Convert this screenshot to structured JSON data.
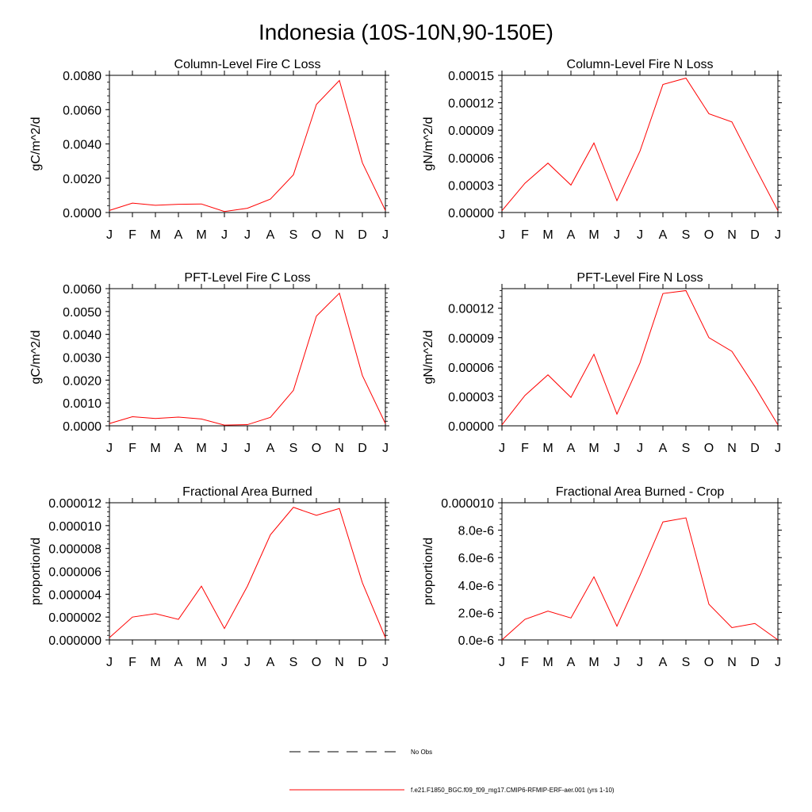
{
  "figure": {
    "title": "Indonesia (10S-10N,90-150E)"
  },
  "legend": {
    "obs_label": "No Obs",
    "model_label": "f.e21.F1850_BGC.f09_f09_mg17.CMIP6-RFMIP-ERF-aer.001 (yrs 1-10)",
    "model_color": "#ff0000",
    "obs_color": "#000000"
  },
  "chart_data": [
    {
      "type": "line",
      "title": "Column-Level Fire C Loss",
      "xlabel": "",
      "ylabel": "gC/m^2/d",
      "categories": [
        "J",
        "F",
        "M",
        "A",
        "M",
        "J",
        "J",
        "A",
        "S",
        "O",
        "N",
        "D",
        "J"
      ],
      "yticks": [
        "0.0000",
        "0.0020",
        "0.0040",
        "0.0060",
        "0.0080"
      ],
      "ylim": [
        0,
        0.008
      ],
      "series": [
        {
          "name": "f.e21.F1850_BGC.f09_f09_mg17.CMIP6-RFMIP-ERF-aer.001 (yrs 1-10)",
          "color": "#ff0000",
          "values": [
            0.00012,
            0.00055,
            0.00042,
            0.00048,
            0.0005,
            6e-05,
            0.00025,
            0.00078,
            0.0022,
            0.0063,
            0.0077,
            0.0029,
            0.00012
          ]
        }
      ]
    },
    {
      "type": "line",
      "title": "Column-Level Fire N Loss",
      "xlabel": "",
      "ylabel": "gN/m^2/d",
      "categories": [
        "J",
        "F",
        "M",
        "A",
        "M",
        "J",
        "J",
        "A",
        "S",
        "O",
        "N",
        "D",
        "J"
      ],
      "yticks": [
        "0.00000",
        "0.00003",
        "0.00006",
        "0.00009",
        "0.00012",
        "0.00015"
      ],
      "ylim": [
        0,
        0.00015
      ],
      "series": [
        {
          "name": "f.e21.F1850_BGC.f09_f09_mg17.CMIP6-RFMIP-ERF-aer.001 (yrs 1-10)",
          "color": "#ff0000",
          "values": [
            2e-06,
            3.2e-05,
            5.4e-05,
            3e-05,
            7.6e-05,
            1.3e-05,
            6.7e-05,
            0.00014,
            0.000147,
            0.000108,
            9.9e-05,
            5e-05,
            2e-06
          ]
        }
      ]
    },
    {
      "type": "line",
      "title": "PFT-Level Fire C Loss",
      "xlabel": "",
      "ylabel": "gC/m^2/d",
      "categories": [
        "J",
        "F",
        "M",
        "A",
        "M",
        "J",
        "J",
        "A",
        "S",
        "O",
        "N",
        "D",
        "J"
      ],
      "yticks": [
        "0.0000",
        "0.0010",
        "0.0020",
        "0.0030",
        "0.0040",
        "0.0050",
        "0.0060"
      ],
      "ylim": [
        0,
        0.006
      ],
      "series": [
        {
          "name": "f.e21.F1850_BGC.f09_f09_mg17.CMIP6-RFMIP-ERF-aer.001 (yrs 1-10)",
          "color": "#ff0000",
          "values": [
            0.0001,
            0.0004,
            0.00032,
            0.00038,
            0.0003,
            3e-05,
            5e-05,
            0.00037,
            0.00155,
            0.0048,
            0.0058,
            0.0022,
            0.0001
          ]
        }
      ]
    },
    {
      "type": "line",
      "title": "PFT-Level Fire N Loss",
      "xlabel": "",
      "ylabel": "gN/m^2/d",
      "categories": [
        "J",
        "F",
        "M",
        "A",
        "M",
        "J",
        "J",
        "A",
        "S",
        "O",
        "N",
        "D",
        "J"
      ],
      "yticks": [
        "0.00000",
        "0.00003",
        "0.00006",
        "0.00009",
        "0.00012"
      ],
      "ylim": [
        0,
        0.00014
      ],
      "series": [
        {
          "name": "f.e21.F1850_BGC.f09_f09_mg17.CMIP6-RFMIP-ERF-aer.001 (yrs 1-10)",
          "color": "#ff0000",
          "values": [
            1e-06,
            3.1e-05,
            5.2e-05,
            2.9e-05,
            7.3e-05,
            1.2e-05,
            6.4e-05,
            0.000135,
            0.000138,
            9e-05,
            7.6e-05,
            4e-05,
            1e-06
          ]
        }
      ]
    },
    {
      "type": "line",
      "title": "Fractional Area Burned",
      "xlabel": "",
      "ylabel": "proportion/d",
      "categories": [
        "J",
        "F",
        "M",
        "A",
        "M",
        "J",
        "J",
        "A",
        "S",
        "O",
        "N",
        "D",
        "J"
      ],
      "yticks": [
        "0.000000",
        "0.000002",
        "0.000004",
        "0.000006",
        "0.000008",
        "0.000010",
        "0.000012"
      ],
      "ylim": [
        0,
        1.2e-05
      ],
      "series": [
        {
          "name": "f.e21.F1850_BGC.f09_f09_mg17.CMIP6-RFMIP-ERF-aer.001 (yrs 1-10)",
          "color": "#ff0000",
          "values": [
            2e-07,
            2e-06,
            2.3e-06,
            1.8e-06,
            4.7e-06,
            1e-06,
            4.7e-06,
            9.2e-06,
            1.16e-05,
            1.09e-05,
            1.15e-05,
            5e-06,
            2e-07
          ]
        }
      ]
    },
    {
      "type": "line",
      "title": "Fractional Area Burned - Crop",
      "xlabel": "",
      "ylabel": "proportion/d",
      "categories": [
        "J",
        "F",
        "M",
        "A",
        "M",
        "J",
        "J",
        "A",
        "S",
        "O",
        "N",
        "D",
        "J"
      ],
      "yticks": [
        "0.0e-6",
        "2.0e-6",
        "4.0e-6",
        "6.0e-6",
        "8.0e-6",
        "0.000010"
      ],
      "ylim": [
        0,
        1e-05
      ],
      "series": [
        {
          "name": "f.e21.F1850_BGC.f09_f09_mg17.CMIP6-RFMIP-ERF-aer.001 (yrs 1-10)",
          "color": "#ff0000",
          "values": [
            0.0,
            1.5e-06,
            2.1e-06,
            1.6e-06,
            4.6e-06,
            1e-06,
            4.7e-06,
            8.6e-06,
            8.9e-06,
            2.6e-06,
            9e-07,
            1.2e-06,
            0.0
          ]
        }
      ]
    }
  ]
}
